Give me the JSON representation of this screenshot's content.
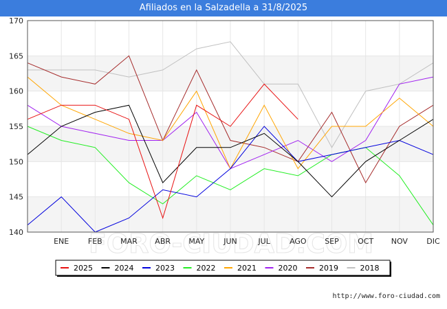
{
  "header": {
    "title": "Afiliados en la Salzadella a 31/8/2025"
  },
  "footer": {
    "url": "http://www.foro-ciudad.com"
  },
  "watermark": "FORO-CIUDAD.COM",
  "chart_data": {
    "type": "line",
    "title": "Afiliados en la Salzadella a 31/8/2025",
    "x_labels": [
      "",
      "ENE",
      "FEB",
      "MAR",
      "ABR",
      "MAY",
      "JUN",
      "JUL",
      "AGO",
      "SEP",
      "OCT",
      "NOV",
      "DIC"
    ],
    "ylim": [
      140,
      170
    ],
    "yticks": [
      140,
      145,
      150,
      155,
      160,
      165,
      170
    ],
    "grid": "horizontal bands",
    "legend_position": "bottom",
    "series": [
      {
        "name": "2025",
        "color": "#e81010",
        "values": [
          156,
          158,
          158,
          156,
          142,
          158,
          155,
          161,
          156,
          null,
          null,
          null,
          null
        ]
      },
      {
        "name": "2024",
        "color": "#000000",
        "values": [
          151,
          155,
          157,
          158,
          147,
          152,
          152,
          154,
          150,
          145,
          150,
          153,
          156
        ]
      },
      {
        "name": "2023",
        "color": "#0000dd",
        "values": [
          141,
          145,
          140,
          142,
          146,
          145,
          149,
          155,
          150,
          151,
          152,
          153,
          151
        ]
      },
      {
        "name": "2022",
        "color": "#22ee22",
        "values": [
          155,
          153,
          152,
          147,
          144,
          148,
          146,
          149,
          148,
          151,
          152,
          148,
          141
        ]
      },
      {
        "name": "2021",
        "color": "#ffa500",
        "values": [
          162,
          158,
          156,
          154,
          153,
          160,
          149,
          158,
          149,
          155,
          155,
          159,
          155
        ]
      },
      {
        "name": "2020",
        "color": "#a020f0",
        "values": [
          158,
          155,
          154,
          153,
          153,
          157,
          149,
          151,
          153,
          150,
          153,
          161,
          162
        ]
      },
      {
        "name": "2019",
        "color": "#a52a2a",
        "values": [
          164,
          162,
          161,
          165,
          153,
          163,
          153,
          152,
          150,
          157,
          147,
          155,
          158
        ]
      },
      {
        "name": "2018",
        "color": "#c0c0c0",
        "values": [
          163,
          163,
          163,
          162,
          163,
          166,
          167,
          161,
          161,
          152,
          160,
          161,
          164
        ]
      }
    ]
  }
}
